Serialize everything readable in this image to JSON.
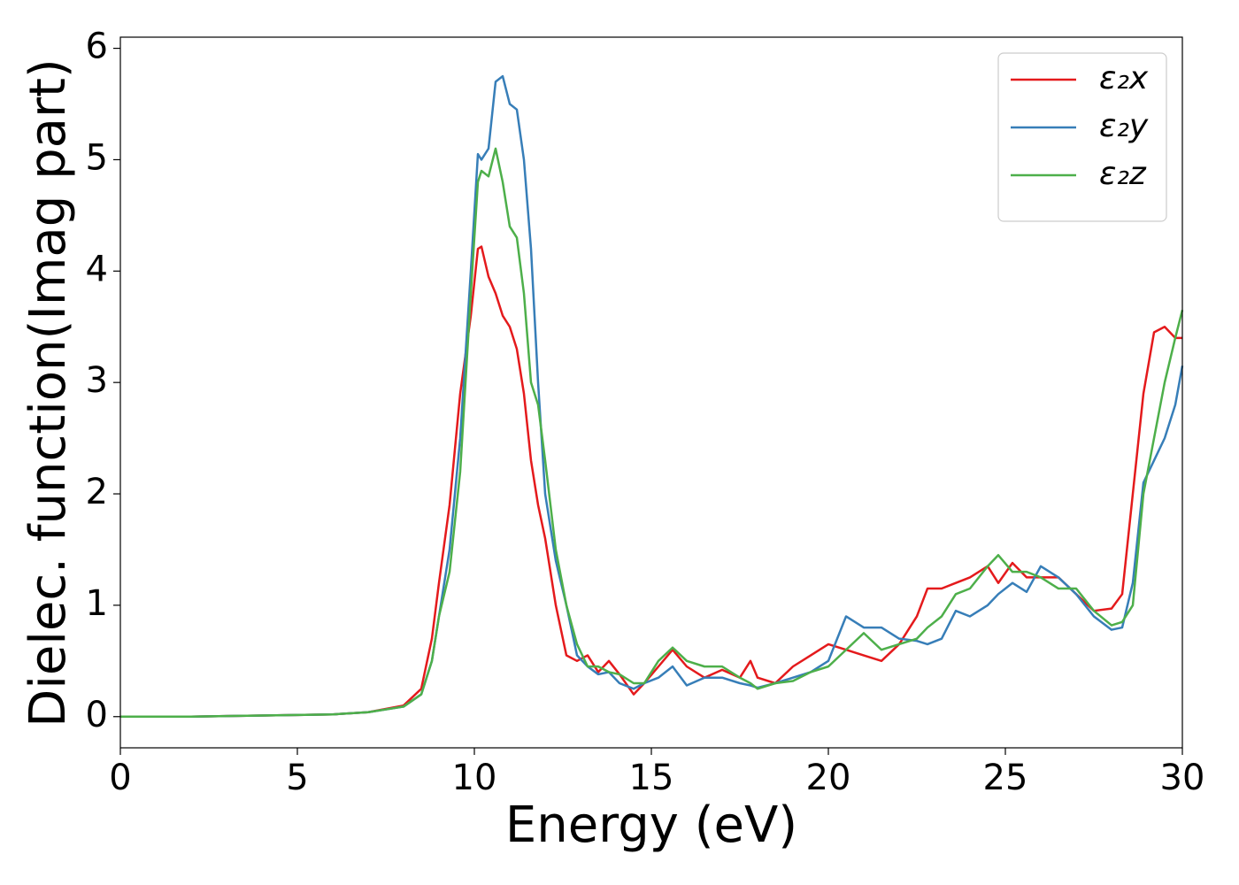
{
  "chart_data": {
    "type": "line",
    "xlabel": "Energy (eV)",
    "ylabel": "Dielec. function(Imag part)",
    "x": [
      0,
      2,
      4,
      6,
      7,
      8,
      8.5,
      8.8,
      9,
      9.3,
      9.6,
      9.9,
      10.1,
      10.2,
      10.4,
      10.6,
      10.8,
      11,
      11.2,
      11.4,
      11.6,
      11.8,
      12,
      12.3,
      12.6,
      12.9,
      13.2,
      13.5,
      13.8,
      14.1,
      14.5,
      14.8,
      15.2,
      15.6,
      16,
      16.5,
      17,
      17.5,
      17.8,
      18,
      18.5,
      19,
      19.5,
      20,
      20.5,
      21,
      21.5,
      22,
      22.5,
      22.8,
      23.2,
      23.6,
      24,
      24.5,
      24.8,
      25.2,
      25.6,
      26,
      26.5,
      27,
      27.5,
      28,
      28.3,
      28.6,
      28.9,
      29.2,
      29.5,
      29.8,
      30
    ],
    "series": [
      {
        "name": "ε₂x",
        "color": "#e41a1c",
        "values": [
          0,
          0,
          0.01,
          0.02,
          0.04,
          0.1,
          0.25,
          0.7,
          1.2,
          1.9,
          2.9,
          3.6,
          4.2,
          4.22,
          3.95,
          3.8,
          3.6,
          3.5,
          3.3,
          2.9,
          2.3,
          1.9,
          1.6,
          1.0,
          0.55,
          0.5,
          0.55,
          0.4,
          0.5,
          0.38,
          0.2,
          0.3,
          0.45,
          0.6,
          0.45,
          0.35,
          0.42,
          0.35,
          0.5,
          0.35,
          0.3,
          0.45,
          0.55,
          0.65,
          0.6,
          0.55,
          0.5,
          0.65,
          0.9,
          1.15,
          1.15,
          1.2,
          1.25,
          1.35,
          1.2,
          1.38,
          1.25,
          1.25,
          1.25,
          1.1,
          0.95,
          0.97,
          1.1,
          2.0,
          2.9,
          3.45,
          3.5,
          3.4,
          3.4
        ]
      },
      {
        "name": "ε₂y",
        "color": "#377eb8",
        "values": [
          0,
          0,
          0.01,
          0.02,
          0.04,
          0.09,
          0.2,
          0.5,
          0.9,
          1.5,
          2.5,
          4.0,
          5.05,
          5.0,
          5.1,
          5.7,
          5.75,
          5.5,
          5.45,
          5.0,
          4.2,
          3.0,
          2.0,
          1.4,
          1.0,
          0.55,
          0.45,
          0.38,
          0.4,
          0.3,
          0.25,
          0.3,
          0.35,
          0.45,
          0.28,
          0.35,
          0.35,
          0.3,
          0.28,
          0.26,
          0.3,
          0.35,
          0.4,
          0.5,
          0.9,
          0.8,
          0.8,
          0.7,
          0.68,
          0.65,
          0.7,
          0.95,
          0.9,
          1.0,
          1.1,
          1.2,
          1.12,
          1.35,
          1.25,
          1.1,
          0.9,
          0.78,
          0.8,
          1.2,
          2.1,
          2.3,
          2.5,
          2.8,
          3.15
        ]
      },
      {
        "name": "ε₂z",
        "color": "#4daf4a",
        "values": [
          0,
          0,
          0.01,
          0.02,
          0.04,
          0.09,
          0.2,
          0.5,
          0.9,
          1.3,
          2.2,
          3.8,
          4.8,
          4.9,
          4.85,
          5.1,
          4.8,
          4.4,
          4.3,
          3.8,
          3.0,
          2.8,
          2.3,
          1.5,
          1.0,
          0.65,
          0.45,
          0.45,
          0.4,
          0.38,
          0.3,
          0.3,
          0.5,
          0.62,
          0.5,
          0.45,
          0.45,
          0.35,
          0.3,
          0.25,
          0.3,
          0.32,
          0.4,
          0.45,
          0.6,
          0.75,
          0.6,
          0.65,
          0.7,
          0.8,
          0.9,
          1.1,
          1.15,
          1.35,
          1.45,
          1.3,
          1.3,
          1.25,
          1.15,
          1.15,
          0.95,
          0.82,
          0.85,
          1.0,
          2.0,
          2.5,
          3.0,
          3.4,
          3.65
        ]
      }
    ],
    "xlim": [
      0,
      30
    ],
    "xticks": [
      0,
      5,
      10,
      15,
      20,
      25,
      30
    ],
    "ylim": [
      -0.28,
      6.1
    ],
    "yticks": [
      0,
      1,
      2,
      3,
      4,
      5,
      6
    ],
    "legend": "upper right",
    "grid": false
  }
}
